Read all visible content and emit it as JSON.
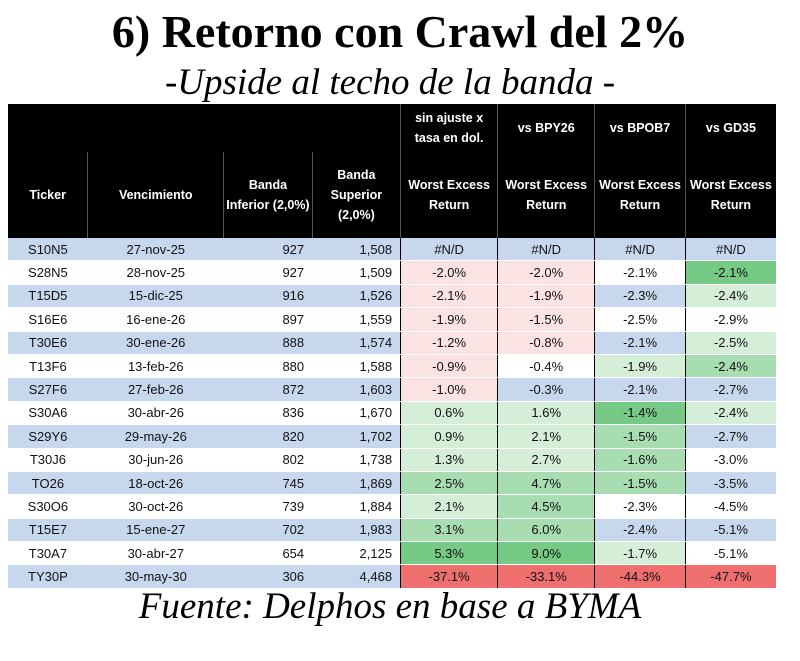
{
  "title": "6) Retorno con Crawl del 2%",
  "subtitle": "-Upside al techo de la banda -",
  "source": "Fuente: Delphos en base a BYMA",
  "table": {
    "top_headers": [
      "sin ajuste x tasa en dol.",
      "vs BPY26",
      "vs BPOB7",
      "vs GD35"
    ],
    "headers": {
      "ticker": "Ticker",
      "vencimiento": "Vencimiento",
      "banda_inferior": "Banda Inferior (2,0%)",
      "banda_superior": "Banda Superior (2,0%)",
      "ret": "Worst Excess Return"
    },
    "rows": [
      {
        "ticker": "S10N5",
        "venc": "27-nov-25",
        "inf": "927",
        "sup": "1,508",
        "r1": "#N/D",
        "r2": "#N/D",
        "r3": "#N/D",
        "r4": "#N/D"
      },
      {
        "ticker": "S28N5",
        "venc": "28-nov-25",
        "inf": "927",
        "sup": "1,509",
        "r1": "-2.0%",
        "r2": "-2.0%",
        "r3": "-2.1%",
        "r4": "-2.1%"
      },
      {
        "ticker": "T15D5",
        "venc": "15-dic-25",
        "inf": "916",
        "sup": "1,526",
        "r1": "-2.1%",
        "r2": "-1.9%",
        "r3": "-2.3%",
        "r4": "-2.4%"
      },
      {
        "ticker": "S16E6",
        "venc": "16-ene-26",
        "inf": "897",
        "sup": "1,559",
        "r1": "-1.9%",
        "r2": "-1.5%",
        "r3": "-2.5%",
        "r4": "-2.9%"
      },
      {
        "ticker": "T30E6",
        "venc": "30-ene-26",
        "inf": "888",
        "sup": "1,574",
        "r1": "-1.2%",
        "r2": "-0.8%",
        "r3": "-2.1%",
        "r4": "-2.5%"
      },
      {
        "ticker": "T13F6",
        "venc": "13-feb-26",
        "inf": "880",
        "sup": "1,588",
        "r1": "-0.9%",
        "r2": "-0.4%",
        "r3": "-1.9%",
        "r4": "-2.4%"
      },
      {
        "ticker": "S27F6",
        "venc": "27-feb-26",
        "inf": "872",
        "sup": "1,603",
        "r1": "-1.0%",
        "r2": "-0.3%",
        "r3": "-2.1%",
        "r4": "-2.7%"
      },
      {
        "ticker": "S30A6",
        "venc": "30-abr-26",
        "inf": "836",
        "sup": "1,670",
        "r1": "0.6%",
        "r2": "1.6%",
        "r3": "-1.4%",
        "r4": "-2.4%"
      },
      {
        "ticker": "S29Y6",
        "venc": "29-may-26",
        "inf": "820",
        "sup": "1,702",
        "r1": "0.9%",
        "r2": "2.1%",
        "r3": "-1.5%",
        "r4": "-2.7%"
      },
      {
        "ticker": "T30J6",
        "venc": "30-jun-26",
        "inf": "802",
        "sup": "1,738",
        "r1": "1.3%",
        "r2": "2.7%",
        "r3": "-1.6%",
        "r4": "-3.0%"
      },
      {
        "ticker": "TO26",
        "venc": "18-oct-26",
        "inf": "745",
        "sup": "1,869",
        "r1": "2.5%",
        "r2": "4.7%",
        "r3": "-1.5%",
        "r4": "-3.5%"
      },
      {
        "ticker": "S30O6",
        "venc": "30-oct-26",
        "inf": "739",
        "sup": "1,884",
        "r1": "2.1%",
        "r2": "4.5%",
        "r3": "-2.3%",
        "r4": "-4.5%"
      },
      {
        "ticker": "T15E7",
        "venc": "15-ene-27",
        "inf": "702",
        "sup": "1,983",
        "r1": "3.1%",
        "r2": "6.0%",
        "r3": "-2.4%",
        "r4": "-5.1%"
      },
      {
        "ticker": "T30A7",
        "venc": "30-abr-27",
        "inf": "654",
        "sup": "2,125",
        "r1": "5.3%",
        "r2": "9.0%",
        "r3": "-1.7%",
        "r4": "-5.1%"
      },
      {
        "ticker": "TY30P",
        "venc": "30-may-30",
        "inf": "306",
        "sup": "4,468",
        "r1": "-37.1%",
        "r2": "-33.1%",
        "r3": "-44.3%",
        "r4": "-47.7%"
      }
    ],
    "shading": {
      "r1": [
        "",
        "neg-light",
        "neg-light",
        "neg-light",
        "neg-light",
        "neg-light",
        "neg-light",
        "pos-light",
        "pos-light",
        "pos-light",
        "pos-mid",
        "pos-light",
        "pos-mid",
        "pos-strong",
        "neg-strong"
      ],
      "r2": [
        "",
        "neg-light",
        "neg-light",
        "neg-light",
        "neg-light",
        "",
        "",
        "pos-light",
        "pos-light",
        "pos-light",
        "pos-mid",
        "pos-mid",
        "pos-mid",
        "pos-strong",
        "neg-strong"
      ],
      "r3": [
        "",
        "",
        "",
        "",
        "",
        "pos-light",
        "",
        "pos-strong",
        "pos-mid",
        "pos-mid",
        "pos-mid",
        "",
        "",
        "pos-light",
        "neg-strong"
      ],
      "r4": [
        "",
        "pos-strong",
        "pos-light",
        "",
        "pos-light",
        "pos-mid",
        "",
        "pos-light",
        "",
        "",
        "",
        "",
        "",
        "",
        "neg-strong"
      ]
    }
  }
}
